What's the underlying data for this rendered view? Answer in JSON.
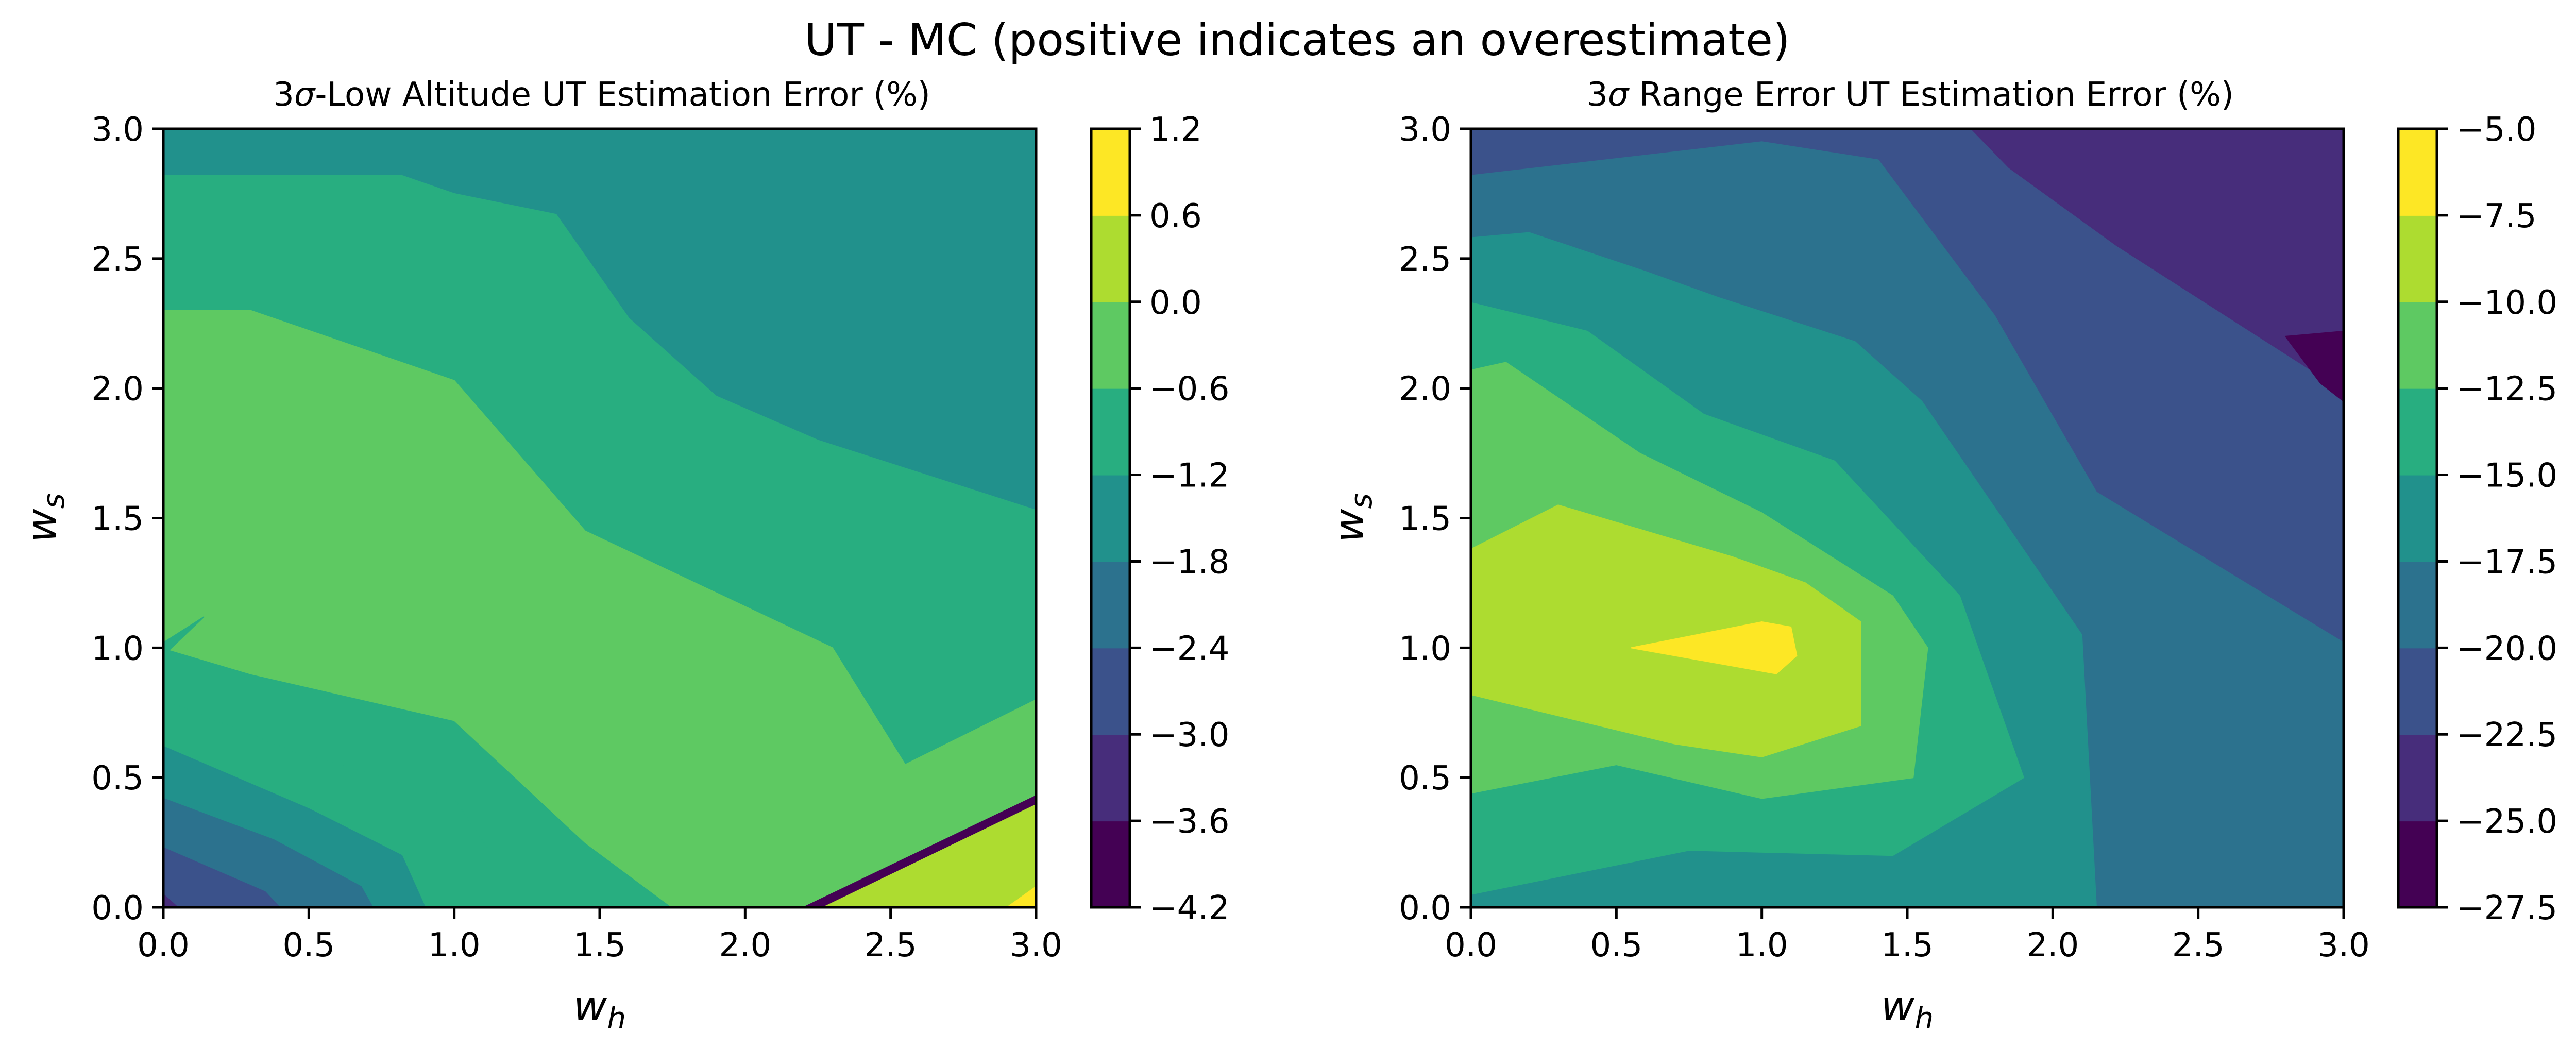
{
  "figure": {
    "suptitle": "UT - MC (positive indicates an overestimate)"
  },
  "chart_data": [
    {
      "type": "heatmap",
      "subtype": "filled-contour",
      "title": "3σ-Low Altitude UT Estimation Error (%)",
      "title_parts": {
        "prefix": "3",
        "sigma": "σ",
        "rest": "-Low Altitude UT Estimation Error (%)"
      },
      "xlabel": "w_h",
      "xlabel_parts": {
        "main": "w",
        "sub": "h"
      },
      "ylabel": "w_s",
      "ylabel_parts": {
        "main": "w",
        "sub": "s"
      },
      "xlim": [
        0.0,
        3.0
      ],
      "ylim": [
        0.0,
        3.0
      ],
      "xticks": [
        "0.0",
        "0.5",
        "1.0",
        "1.5",
        "2.0",
        "2.5",
        "3.0"
      ],
      "yticks": [
        "0.0",
        "0.5",
        "1.0",
        "1.5",
        "2.0",
        "2.5",
        "3.0"
      ],
      "colorbar": {
        "levels": [
          -4.2,
          -3.6,
          -3.0,
          -2.4,
          -1.8,
          -1.2,
          -0.6,
          0.0,
          0.6,
          1.2
        ],
        "tick_labels": [
          "1.2",
          "0.6",
          "0.0",
          "−0.6",
          "−1.2",
          "−1.8",
          "−2.4",
          "−3.0",
          "−3.6",
          "−4.2"
        ],
        "colors": [
          "#440154",
          "#472d7b",
          "#3b528b",
          "#2c728e",
          "#21918c",
          "#28ae80",
          "#5ec962",
          "#addc30",
          "#fde725"
        ]
      },
      "regions": [
        {
          "band": 4,
          "points": [
            [
              0,
              0
            ],
            [
              3,
              0
            ],
            [
              3,
              3
            ],
            [
              0,
              3
            ]
          ]
        },
        {
          "band": 5,
          "points": [
            [
              0,
              0
            ],
            [
              3,
              0
            ],
            [
              3,
              1.53
            ],
            [
              2.25,
              1.8
            ],
            [
              1.9,
              1.97
            ],
            [
              1.6,
              2.27
            ],
            [
              1.35,
              2.67
            ],
            [
              1.0,
              2.75
            ],
            [
              0.82,
              2.82
            ],
            [
              0,
              2.82
            ]
          ]
        },
        {
          "band": 6,
          "points": [
            [
              0,
              2.3
            ],
            [
              0.3,
              2.3
            ],
            [
              1.0,
              2.03
            ],
            [
              1.45,
              1.45
            ],
            [
              2.3,
              1.0
            ],
            [
              2.55,
              0.55
            ],
            [
              3,
              0.8
            ],
            [
              3,
              0
            ],
            [
              1.75,
              0
            ],
            [
              1.45,
              0.25
            ],
            [
              1.0,
              0.72
            ],
            [
              0.3,
              0.9
            ],
            [
              0,
              1.0
            ]
          ]
        },
        {
          "band": 5,
          "points": [
            [
              0,
              0.8
            ],
            [
              0.45,
              0.6
            ],
            [
              1.0,
              0.42
            ],
            [
              1.12,
              0.22
            ],
            [
              1.14,
              0
            ],
            [
              0,
              0
            ]
          ]
        },
        {
          "band": 4,
          "points": [
            [
              0,
              0.62
            ],
            [
              0.5,
              0.38
            ],
            [
              0.82,
              0.2
            ],
            [
              0.9,
              0
            ],
            [
              0,
              0
            ]
          ]
        },
        {
          "band": 3,
          "points": [
            [
              0,
              0.42
            ],
            [
              0.38,
              0.26
            ],
            [
              0.68,
              0.08
            ],
            [
              0.72,
              0
            ],
            [
              0,
              0
            ]
          ]
        },
        {
          "band": 2,
          "points": [
            [
              0,
              0.23
            ],
            [
              0.35,
              0.06
            ],
            [
              0.4,
              0
            ],
            [
              0,
              0
            ]
          ]
        },
        {
          "band": 1,
          "points": [
            [
              0,
              0.05
            ],
            [
              0.05,
              0
            ],
            [
              0,
              0
            ]
          ]
        },
        {
          "band": 7,
          "points": [
            [
              2.25,
              0
            ],
            [
              3,
              0.4
            ],
            [
              3,
              0
            ]
          ]
        },
        {
          "band": 8,
          "points": [
            [
              2.9,
              0
            ],
            [
              3,
              0.08
            ],
            [
              3,
              0
            ]
          ]
        },
        {
          "band": 0,
          "points": [
            [
              2.2,
              0
            ],
            [
              3,
              0.43
            ],
            [
              3,
              0.4
            ],
            [
              2.26,
              0
            ]
          ]
        },
        {
          "band": 5,
          "points": [
            [
              0,
              0.97
            ],
            [
              0.14,
              1.12
            ],
            [
              0,
              1.02
            ]
          ]
        }
      ]
    },
    {
      "type": "heatmap",
      "subtype": "filled-contour",
      "title": "3σ Range Error UT Estimation Error (%)",
      "title_parts": {
        "prefix": "3",
        "sigma": "σ",
        "rest": " Range Error UT Estimation Error (%)"
      },
      "xlabel": "w_h",
      "xlabel_parts": {
        "main": "w",
        "sub": "h"
      },
      "ylabel": "w_s",
      "ylabel_parts": {
        "main": "w",
        "sub": "s"
      },
      "xlim": [
        0.0,
        3.0
      ],
      "ylim": [
        0.0,
        3.0
      ],
      "xticks": [
        "0.0",
        "0.5",
        "1.0",
        "1.5",
        "2.0",
        "2.5",
        "3.0"
      ],
      "yticks": [
        "0.0",
        "0.5",
        "1.0",
        "1.5",
        "2.0",
        "2.5",
        "3.0"
      ],
      "colorbar": {
        "levels": [
          -27.5,
          -25.0,
          -22.5,
          -20.0,
          -17.5,
          -15.0,
          -12.5,
          -10.0,
          -7.5,
          -5.0
        ],
        "tick_labels": [
          "−5.0",
          "−7.5",
          "−10.0",
          "−12.5",
          "−15.0",
          "−17.5",
          "−20.0",
          "−22.5",
          "−25.0",
          "−27.5"
        ],
        "colors": [
          "#440154",
          "#472d7b",
          "#3b528b",
          "#2c728e",
          "#21918c",
          "#28ae80",
          "#5ec962",
          "#addc30",
          "#fde725"
        ]
      },
      "regions": [
        {
          "band": 2,
          "points": [
            [
              0,
              0
            ],
            [
              3,
              0
            ],
            [
              3,
              3
            ],
            [
              0,
              3
            ]
          ]
        },
        {
          "band": 1,
          "points": [
            [
              1.72,
              3
            ],
            [
              3,
              3
            ],
            [
              3,
              1.99
            ],
            [
              2.22,
              2.55
            ],
            [
              1.85,
              2.85
            ]
          ]
        },
        {
          "band": 0,
          "points": [
            [
              2.8,
              2.2
            ],
            [
              3,
              2.22
            ],
            [
              3,
              1.95
            ],
            [
              2.92,
              2.02
            ]
          ]
        },
        {
          "band": 3,
          "points": [
            [
              0,
              0
            ],
            [
              3,
              0
            ],
            [
              3,
              1.02
            ],
            [
              2.15,
              1.6
            ],
            [
              1.8,
              2.28
            ],
            [
              1.4,
              2.88
            ],
            [
              1.0,
              2.95
            ],
            [
              0,
              2.82
            ]
          ]
        },
        {
          "band": 4,
          "points": [
            [
              0,
              0
            ],
            [
              2.15,
              0
            ],
            [
              2.1,
              1.05
            ],
            [
              1.55,
              1.95
            ],
            [
              1.32,
              2.18
            ],
            [
              0.85,
              2.35
            ],
            [
              0.6,
              2.45
            ],
            [
              0.2,
              2.6
            ],
            [
              0,
              2.58
            ]
          ]
        },
        {
          "band": 5,
          "points": [
            [
              0,
              0.05
            ],
            [
              0.75,
              0.22
            ],
            [
              1.45,
              0.2
            ],
            [
              1.9,
              0.5
            ],
            [
              1.68,
              1.2
            ],
            [
              1.25,
              1.72
            ],
            [
              0.8,
              1.9
            ],
            [
              0.4,
              2.22
            ],
            [
              0,
              2.33
            ]
          ]
        },
        {
          "band": 6,
          "points": [
            [
              0,
              0.44
            ],
            [
              0.5,
              0.55
            ],
            [
              1.0,
              0.42
            ],
            [
              1.52,
              0.5
            ],
            [
              1.57,
              1.0
            ],
            [
              1.45,
              1.2
            ],
            [
              1.0,
              1.52
            ],
            [
              0.58,
              1.75
            ],
            [
              0.12,
              2.1
            ],
            [
              0,
              2.07
            ]
          ]
        },
        {
          "band": 7,
          "points": [
            [
              0,
              0.82
            ],
            [
              0.7,
              0.63
            ],
            [
              1.0,
              0.58
            ],
            [
              1.34,
              0.7
            ],
            [
              1.34,
              1.1
            ],
            [
              1.15,
              1.25
            ],
            [
              0.9,
              1.35
            ],
            [
              0.3,
              1.55
            ],
            [
              0,
              1.38
            ]
          ]
        },
        {
          "band": 8,
          "points": [
            [
              0.55,
              1.0
            ],
            [
              1.05,
              0.9
            ],
            [
              1.12,
              0.97
            ],
            [
              1.1,
              1.08
            ],
            [
              1.0,
              1.1
            ]
          ]
        }
      ]
    }
  ]
}
